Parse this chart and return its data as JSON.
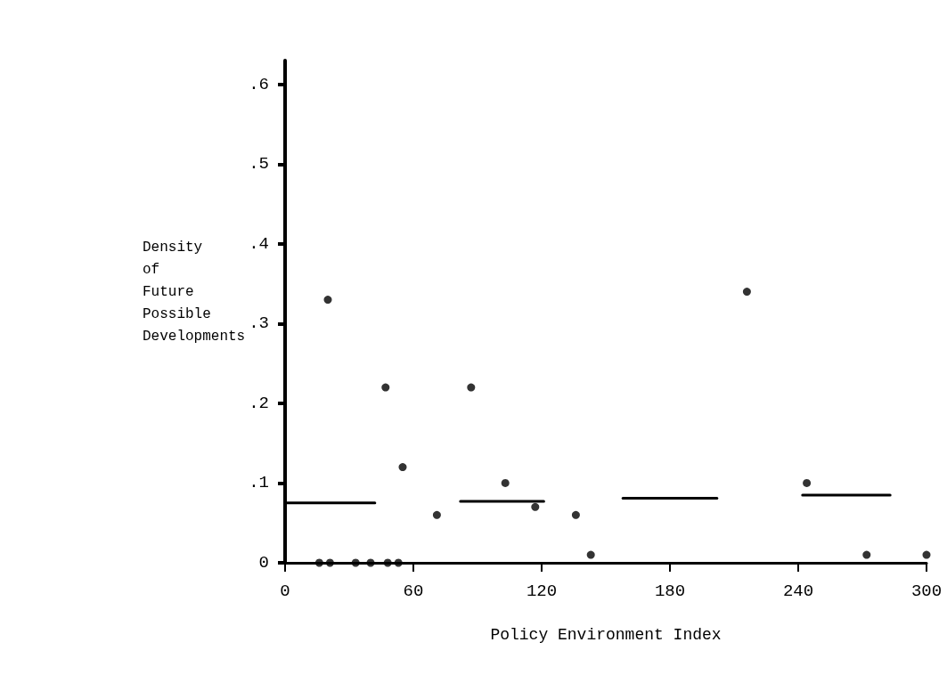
{
  "chart_data": {
    "type": "scatter",
    "xlabel": "Policy Environment Index",
    "ylabel": "Density\nof\nFuture\nPossible\nDevelopments",
    "xlim": [
      0,
      300
    ],
    "xticks": [
      0,
      60,
      120,
      180,
      240,
      300
    ],
    "ylim": [
      0,
      0.63
    ],
    "yticks": [
      0,
      {
        "value": 0.1,
        "label": ".1"
      },
      {
        "value": 0.2,
        "label": ".2"
      },
      {
        "value": 0.3,
        "label": ".3"
      },
      {
        "value": 0.4,
        "label": ".4"
      },
      {
        "value": 0.5,
        "label": ".5"
      },
      {
        "value": 0.6,
        "label": ".6"
      }
    ],
    "grid": false,
    "marker": "circle",
    "series": [
      {
        "color": "#000000",
        "x": [
          16,
          21,
          33,
          40,
          48,
          53,
          20,
          47,
          55,
          71,
          87,
          103,
          117,
          136,
          143,
          216,
          244,
          272,
          300
        ],
        "values": [
          0,
          0,
          0,
          0,
          0,
          0,
          0.33,
          0.22,
          0.12,
          0.06,
          0.22,
          0.1,
          0.07,
          0.06,
          0.01,
          0.34,
          0.1,
          0.01,
          0.01
        ]
      },
      {
        "type": "line",
        "color": "#000000",
        "x": [
          0,
          42
        ],
        "values": [
          0.075,
          0.075
        ],
        "marker": "none"
      },
      {
        "type": "line",
        "color": "#000000",
        "x": [
          82,
          121
        ],
        "values": [
          0.077,
          0.077
        ],
        "marker": "none"
      },
      {
        "type": "line",
        "color": "#000000",
        "x": [
          158,
          202
        ],
        "values": [
          0.081,
          0.081
        ],
        "marker": "none"
      },
      {
        "type": "line",
        "color": "#000000",
        "x": [
          242,
          283
        ],
        "values": [
          0.085,
          0.085
        ],
        "marker": "none"
      }
    ]
  }
}
